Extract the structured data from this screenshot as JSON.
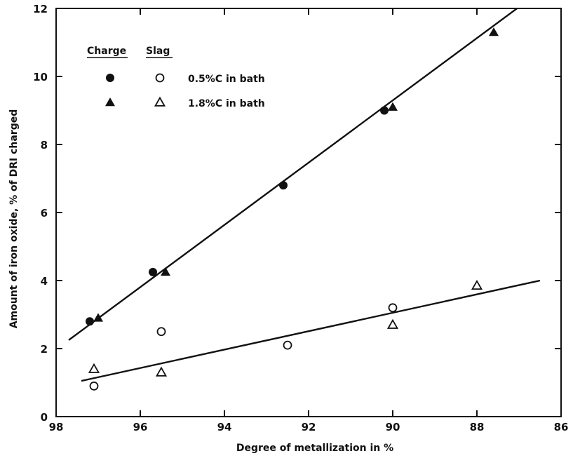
{
  "chart_data": {
    "type": "scatter",
    "xlabel": "Degree of metallization in %",
    "ylabel": "Amount of iron oxide, % of DRI charged",
    "xlim": [
      98,
      86
    ],
    "ylim": [
      0,
      12
    ],
    "x_ticks": [
      "98",
      "96",
      "94",
      "92",
      "90",
      "88",
      "86"
    ],
    "y_ticks": [
      "0",
      "2",
      "4",
      "6",
      "8",
      "10",
      "12"
    ],
    "grid": false,
    "legend": {
      "placement": "top-left",
      "headers": [
        "Charge",
        "Slag"
      ],
      "entries": [
        "0.5%C in bath",
        "1.8%C in bath"
      ]
    },
    "series": [
      {
        "role": "Charge",
        "bath": "0.5%C in bath",
        "marker": "filled-circle",
        "x": [
          97.2,
          95.7,
          92.6,
          90.2
        ],
        "y": [
          2.8,
          4.25,
          6.8,
          9.0
        ]
      },
      {
        "role": "Charge",
        "bath": "1.8%C in bath",
        "marker": "filled-triangle",
        "x": [
          97.0,
          95.4,
          90.0,
          87.6
        ],
        "y": [
          2.9,
          4.25,
          9.1,
          11.3
        ]
      },
      {
        "role": "Slag",
        "bath": "0.5%C in bath",
        "marker": "open-circle",
        "x": [
          97.1,
          95.5,
          92.5,
          90.0
        ],
        "y": [
          0.9,
          2.5,
          2.1,
          3.2
        ]
      },
      {
        "role": "Slag",
        "bath": "1.8%C in bath",
        "marker": "open-triangle",
        "x": [
          97.1,
          95.5,
          90.0,
          88.0
        ],
        "y": [
          1.4,
          1.3,
          2.7,
          3.85
        ]
      }
    ],
    "fit_lines": [
      {
        "name": "charge-fit",
        "x": [
          97.7,
          86.5
        ],
        "y": [
          2.25,
          12.5
        ]
      },
      {
        "name": "slag-fit",
        "x": [
          97.4,
          86.5
        ],
        "y": [
          1.05,
          4.0
        ]
      }
    ]
  }
}
